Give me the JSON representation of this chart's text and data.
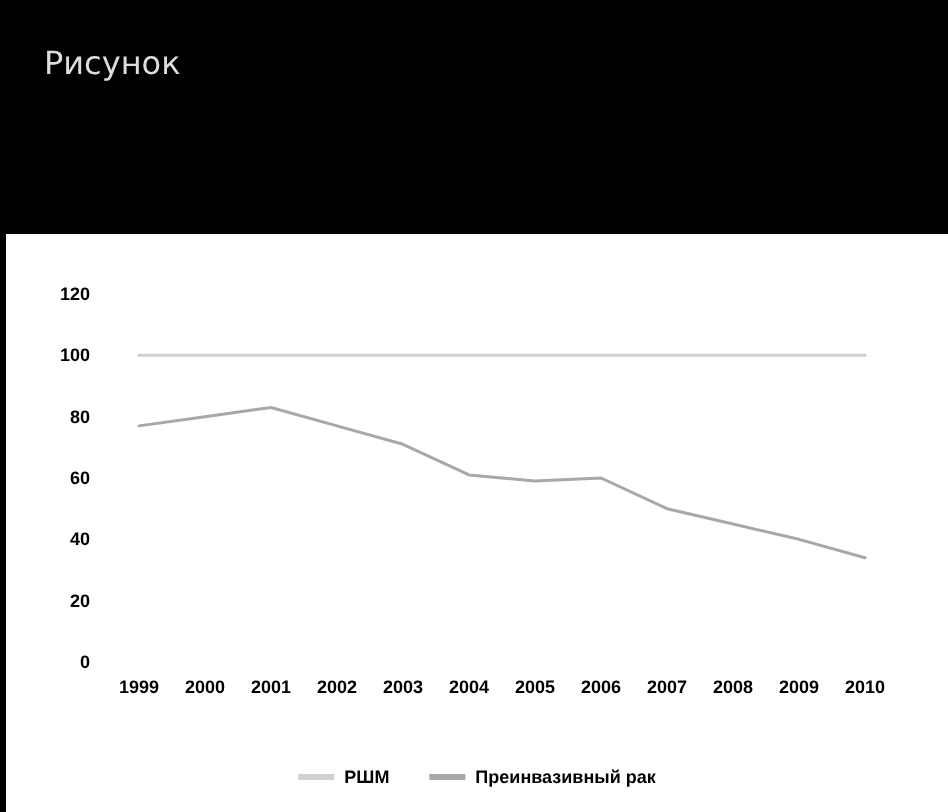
{
  "chart_data": {
    "type": "line",
    "title": "Рисунок",
    "categories": [
      "1999",
      "2000",
      "2001",
      "2002",
      "2003",
      "2004",
      "2005",
      "2006",
      "2007",
      "2008",
      "2009",
      "2010"
    ],
    "series": [
      {
        "name": "РШМ",
        "color": "#d0d0d0",
        "values": [
          100,
          100,
          100,
          100,
          100,
          100,
          100,
          100,
          100,
          100,
          100,
          100
        ]
      },
      {
        "name": "Преинвазивный рак",
        "color": "#a8a8a8",
        "values": [
          77,
          80,
          83,
          77,
          71,
          61,
          59,
          60,
          50,
          45,
          40,
          34
        ]
      }
    ],
    "ylim": [
      0,
      120
    ],
    "yticks": [
      0,
      20,
      40,
      60,
      80,
      100,
      120
    ],
    "grid": false,
    "legend": "bottom",
    "marker": "none",
    "line_style": "solid"
  }
}
